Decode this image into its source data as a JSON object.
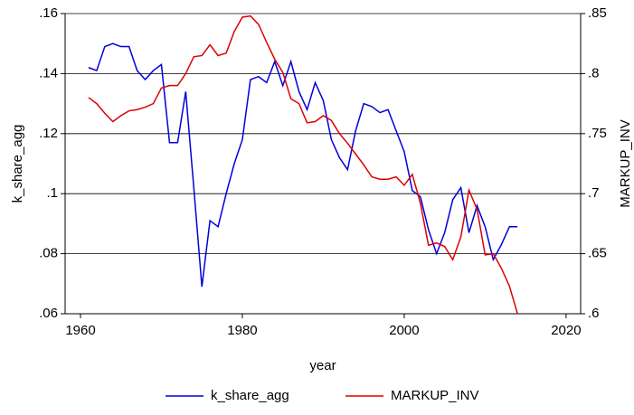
{
  "chart_data": {
    "type": "line",
    "x_label": "year",
    "y_label": "k_share_agg",
    "y2_label": "MARKUP_INV",
    "x": [
      1961,
      1962,
      1963,
      1964,
      1965,
      1966,
      1967,
      1968,
      1969,
      1970,
      1971,
      1972,
      1973,
      1974,
      1975,
      1976,
      1977,
      1978,
      1979,
      1980,
      1981,
      1982,
      1983,
      1984,
      1985,
      1986,
      1987,
      1988,
      1989,
      1990,
      1991,
      1992,
      1993,
      1994,
      1995,
      1996,
      1997,
      1998,
      1999,
      2000,
      2001,
      2002,
      2003,
      2004,
      2005,
      2006,
      2007,
      2008,
      2009,
      2010,
      2011,
      2012,
      2013,
      2014
    ],
    "series": [
      {
        "name": "k_share_agg",
        "color": "#0000dd",
        "axis": "y",
        "values": [
          0.142,
          0.141,
          0.149,
          0.15,
          0.149,
          0.149,
          0.141,
          0.138,
          0.141,
          0.143,
          0.117,
          0.117,
          0.134,
          0.102,
          0.069,
          0.091,
          0.089,
          0.1,
          0.11,
          0.118,
          0.138,
          0.139,
          0.137,
          0.144,
          0.136,
          0.144,
          0.134,
          0.128,
          0.137,
          0.131,
          0.118,
          0.112,
          0.108,
          0.121,
          0.13,
          0.129,
          0.127,
          0.128,
          0.121,
          0.114,
          0.101,
          0.099,
          0.088,
          0.08,
          0.087,
          0.098,
          0.102,
          0.087,
          0.096,
          0.089,
          0.078,
          0.083,
          0.089,
          0.089
        ]
      },
      {
        "name": "MARKUP_INV",
        "color": "#dd0000",
        "axis": "y2",
        "values": [
          0.78,
          0.775,
          0.767,
          0.76,
          0.765,
          0.769,
          0.77,
          0.772,
          0.775,
          0.788,
          0.79,
          0.79,
          0.8,
          0.814,
          0.815,
          0.824,
          0.815,
          0.817,
          0.835,
          0.847,
          0.848,
          0.841,
          0.826,
          0.812,
          0.801,
          0.779,
          0.775,
          0.759,
          0.76,
          0.765,
          0.761,
          0.75,
          0.742,
          0.733,
          0.724,
          0.714,
          0.712,
          0.712,
          0.714,
          0.707,
          0.716,
          0.692,
          0.657,
          0.659,
          0.656,
          0.645,
          0.664,
          0.703,
          0.687,
          0.649,
          0.65,
          0.638,
          0.623,
          0.6
        ]
      }
    ],
    "xlim": [
      1958.1,
      2021.8
    ],
    "xticks": [
      1960,
      1980,
      2000,
      2020
    ],
    "ylim": [
      0.06,
      0.16
    ],
    "yticks": [
      {
        "value": 0.06,
        "label": ".06"
      },
      {
        "value": 0.08,
        "label": ".08"
      },
      {
        "value": 0.1,
        "label": ".1"
      },
      {
        "value": 0.12,
        "label": ".12"
      },
      {
        "value": 0.14,
        "label": ".14"
      },
      {
        "value": 0.16,
        "label": ".16"
      }
    ],
    "y2lim": [
      0.6,
      0.85
    ],
    "y2ticks": [
      {
        "value": 0.6,
        "label": ".6"
      },
      {
        "value": 0.65,
        "label": ".65"
      },
      {
        "value": 0.7,
        "label": ".7"
      },
      {
        "value": 0.75,
        "label": ".75"
      },
      {
        "value": 0.8,
        "label": ".8"
      },
      {
        "value": 0.85,
        "label": ".85"
      }
    ],
    "grid": true,
    "legend": "bottom"
  }
}
